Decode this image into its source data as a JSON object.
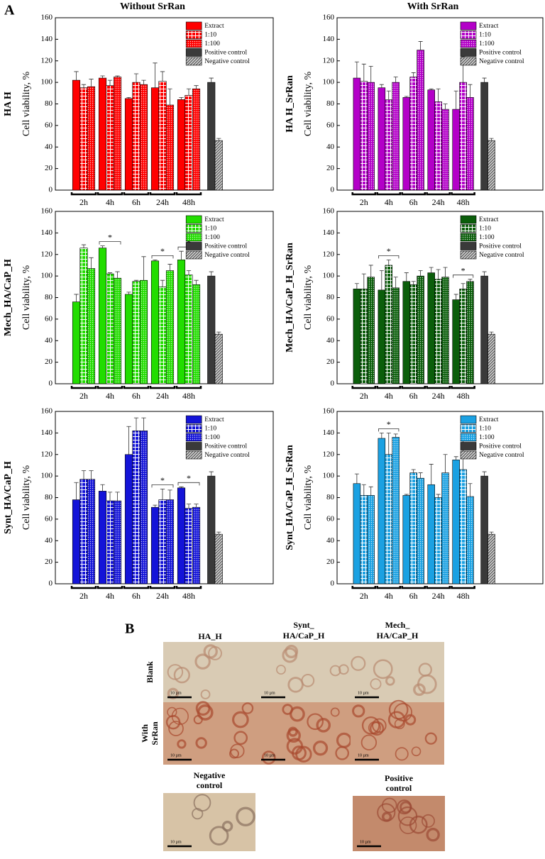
{
  "panel_a": {
    "label": "A",
    "columns": [
      "Without SrRan",
      "With SrRan"
    ]
  },
  "chart_data": [
    {
      "type": "bar",
      "side_label": "HA H",
      "ylabel": "Cell viability, %",
      "categories": [
        "2h",
        "4h",
        "6h",
        "24h",
        "48h",
        null
      ],
      "ylim": [
        0,
        160
      ],
      "yticks": [
        0,
        20,
        40,
        60,
        80,
        100,
        120,
        140,
        160
      ],
      "legend": "upper right",
      "series": [
        {
          "name": "Extract",
          "color": "#ff0000",
          "hatch": "none",
          "values": [
            102,
            104,
            85,
            95,
            84,
            null
          ],
          "errors": [
            8,
            2,
            1,
            23,
            2,
            null
          ]
        },
        {
          "name": "1:10",
          "color": "#ff0000",
          "hatch": "grid",
          "values": [
            95,
            97,
            100,
            101,
            88,
            null
          ],
          "errors": [
            3,
            5,
            8,
            9,
            6,
            null
          ]
        },
        {
          "name": "1:100",
          "color": "#ff0000",
          "hatch": "dots",
          "values": [
            96,
            105,
            98,
            79,
            94,
            null
          ],
          "errors": [
            7,
            1,
            4,
            15,
            3,
            null
          ]
        },
        {
          "name": "Positive control",
          "color": "#3a3a3a",
          "hatch": "none",
          "values": [
            null,
            null,
            null,
            null,
            null,
            100
          ],
          "errors": [
            null,
            null,
            null,
            null,
            null,
            4
          ]
        },
        {
          "name": "Negative control",
          "color": "#555555",
          "hatch": "diagonal",
          "values": [
            null,
            null,
            null,
            null,
            null,
            46
          ],
          "errors": [
            null,
            null,
            null,
            null,
            null,
            2
          ]
        }
      ],
      "significance": []
    },
    {
      "type": "bar",
      "side_label": "HA H_SrRan",
      "ylabel": "Cell viability, %",
      "categories": [
        "2h",
        "4h",
        "6h",
        "24h",
        "48h",
        null
      ],
      "ylim": [
        0,
        160
      ],
      "yticks": [
        0,
        20,
        40,
        60,
        80,
        100,
        120,
        140,
        160
      ],
      "legend": "upper right",
      "series": [
        {
          "name": "Extract",
          "color": "#b300c8",
          "hatch": "none",
          "values": [
            104,
            95,
            86,
            93,
            75,
            null
          ],
          "errors": [
            15,
            3,
            1,
            1,
            17,
            null
          ]
        },
        {
          "name": "1:10",
          "color": "#b300c8",
          "hatch": "grid",
          "values": [
            101,
            84,
            105,
            82,
            100,
            null
          ],
          "errors": [
            16,
            8,
            4,
            12,
            24,
            null
          ]
        },
        {
          "name": "1:100",
          "color": "#b300c8",
          "hatch": "dots",
          "values": [
            100,
            100,
            130,
            75,
            86,
            null
          ],
          "errors": [
            15,
            5,
            8,
            5,
            12,
            null
          ]
        },
        {
          "name": "Positive control",
          "color": "#3a3a3a",
          "hatch": "none",
          "values": [
            null,
            null,
            null,
            null,
            null,
            100
          ],
          "errors": [
            null,
            null,
            null,
            null,
            null,
            4
          ]
        },
        {
          "name": "Negative control",
          "color": "#555555",
          "hatch": "diagonal",
          "values": [
            null,
            null,
            null,
            null,
            null,
            46
          ],
          "errors": [
            null,
            null,
            null,
            null,
            null,
            2
          ]
        }
      ],
      "significance": []
    },
    {
      "type": "bar",
      "side_label": "Mech_HA/CaP_H",
      "ylabel": "Cell viability, %",
      "categories": [
        "2h",
        "4h",
        "6h",
        "24h",
        "48h",
        null
      ],
      "ylim": [
        0,
        160
      ],
      "yticks": [
        0,
        20,
        40,
        60,
        80,
        100,
        120,
        140,
        160
      ],
      "legend": "upper right",
      "series": [
        {
          "name": "Extract",
          "color": "#22dd00",
          "hatch": "none",
          "values": [
            76,
            126,
            83,
            114,
            115,
            null
          ],
          "errors": [
            7,
            2,
            2,
            1,
            8,
            null
          ]
        },
        {
          "name": "1:10",
          "color": "#22dd00",
          "hatch": "grid",
          "values": [
            126,
            102,
            95,
            90,
            101,
            null
          ],
          "errors": [
            3,
            1,
            1,
            6,
            4,
            null
          ]
        },
        {
          "name": "1:100",
          "color": "#22dd00",
          "hatch": "dots",
          "values": [
            107,
            98,
            96,
            105,
            92,
            null
          ],
          "errors": [
            10,
            6,
            22,
            6,
            4,
            null
          ]
        },
        {
          "name": "Positive control",
          "color": "#3a3a3a",
          "hatch": "none",
          "values": [
            null,
            null,
            null,
            null,
            null,
            100
          ],
          "errors": [
            null,
            null,
            null,
            null,
            null,
            4
          ]
        },
        {
          "name": "Negative control",
          "color": "#555555",
          "hatch": "diagonal",
          "values": [
            null,
            null,
            null,
            null,
            null,
            46
          ],
          "errors": [
            null,
            null,
            null,
            null,
            null,
            2
          ]
        }
      ],
      "significance": [
        {
          "label": "*",
          "category": 1
        },
        {
          "label": "*",
          "category": 3
        },
        {
          "label": "*",
          "category": 4
        }
      ]
    },
    {
      "type": "bar",
      "side_label": "Mech_HA/CaP_H_SrRan",
      "ylabel": "Cell viability, %",
      "categories": [
        "2h",
        "4h",
        "6h",
        "24h",
        "48h",
        null
      ],
      "ylim": [
        0,
        160
      ],
      "yticks": [
        0,
        20,
        40,
        60,
        80,
        100,
        120,
        140,
        160
      ],
      "legend": "upper right",
      "series": [
        {
          "name": "Extract",
          "color": "#0b5e0b",
          "hatch": "none",
          "values": [
            88,
            87,
            95,
            103,
            78,
            null
          ],
          "errors": [
            5,
            18,
            8,
            5,
            5,
            null
          ]
        },
        {
          "name": "1:10",
          "color": "#0b5e0b",
          "hatch": "grid",
          "values": [
            88,
            110,
            92,
            97,
            88,
            null
          ],
          "errors": [
            14,
            5,
            3,
            9,
            5,
            null
          ]
        },
        {
          "name": "1:100",
          "color": "#0b5e0b",
          "hatch": "dots",
          "values": [
            99,
            89,
            100,
            99,
            95,
            null
          ],
          "errors": [
            11,
            10,
            5,
            9,
            2,
            null
          ]
        },
        {
          "name": "Positive control",
          "color": "#3a3a3a",
          "hatch": "none",
          "values": [
            null,
            null,
            null,
            null,
            null,
            100
          ],
          "errors": [
            null,
            null,
            null,
            null,
            null,
            4
          ]
        },
        {
          "name": "Negative control",
          "color": "#555555",
          "hatch": "diagonal",
          "values": [
            null,
            null,
            null,
            null,
            null,
            46
          ],
          "errors": [
            null,
            null,
            null,
            null,
            null,
            2
          ]
        }
      ],
      "significance": [
        {
          "label": "*",
          "category": 1
        },
        {
          "label": "*",
          "category": 4
        }
      ]
    },
    {
      "type": "bar",
      "side_label": "Synt_HA/CaP_H",
      "ylabel": "Cell viability, %",
      "categories": [
        "2h",
        "4h",
        "6h",
        "24h",
        "48h",
        null
      ],
      "ylim": [
        0,
        160
      ],
      "yticks": [
        0,
        20,
        40,
        60,
        80,
        100,
        120,
        140,
        160
      ],
      "legend": "upper right",
      "series": [
        {
          "name": "Extract",
          "color": "#1414d8",
          "hatch": "none",
          "values": [
            78,
            86,
            120,
            71,
            89,
            null
          ],
          "errors": [
            16,
            6,
            26,
            2,
            1,
            null
          ]
        },
        {
          "name": "1:10",
          "color": "#1414d8",
          "hatch": "grid",
          "values": [
            97,
            77,
            142,
            78,
            70,
            null
          ],
          "errors": [
            8,
            8,
            12,
            10,
            4,
            null
          ]
        },
        {
          "name": "1:100",
          "color": "#1414d8",
          "hatch": "dots",
          "values": [
            97,
            77,
            142,
            78,
            71,
            null
          ],
          "errors": [
            8,
            8,
            12,
            9,
            3,
            null
          ]
        },
        {
          "name": "Positive control",
          "color": "#3a3a3a",
          "hatch": "none",
          "values": [
            null,
            null,
            null,
            null,
            null,
            100
          ],
          "errors": [
            null,
            null,
            null,
            null,
            null,
            4
          ]
        },
        {
          "name": "Negative control",
          "color": "#555555",
          "hatch": "diagonal",
          "values": [
            null,
            null,
            null,
            null,
            null,
            46
          ],
          "errors": [
            null,
            null,
            null,
            null,
            null,
            2
          ]
        }
      ],
      "significance": [
        {
          "label": "*",
          "category": 3
        },
        {
          "label": "*",
          "category": 4
        }
      ]
    },
    {
      "type": "bar",
      "side_label": "Synt_HA/CaP_H_SrRan",
      "ylabel": "Cell viability, %",
      "categories": [
        "2h",
        "4h",
        "6h",
        "24h",
        "48h",
        null
      ],
      "ylim": [
        0,
        160
      ],
      "yticks": [
        0,
        20,
        40,
        60,
        80,
        100,
        120,
        140,
        160
      ],
      "legend": "upper right",
      "series": [
        {
          "name": "Extract",
          "color": "#1ba1e2",
          "hatch": "none",
          "values": [
            93,
            135,
            82,
            92,
            115,
            null
          ],
          "errors": [
            9,
            5,
            1,
            19,
            3,
            null
          ]
        },
        {
          "name": "1:10",
          "color": "#1ba1e2",
          "hatch": "grid",
          "values": [
            82,
            120,
            103,
            80,
            106,
            null
          ],
          "errors": [
            10,
            20,
            3,
            3,
            30,
            null
          ]
        },
        {
          "name": "1:100",
          "color": "#1ba1e2",
          "hatch": "dots",
          "values": [
            82,
            136,
            98,
            103,
            81,
            null
          ],
          "errors": [
            8,
            3,
            5,
            17,
            12,
            null
          ]
        },
        {
          "name": "Positive control",
          "color": "#3a3a3a",
          "hatch": "none",
          "values": [
            null,
            null,
            null,
            null,
            null,
            100
          ],
          "errors": [
            null,
            null,
            null,
            null,
            null,
            4
          ]
        },
        {
          "name": "Negative control",
          "color": "#555555",
          "hatch": "diagonal",
          "values": [
            null,
            null,
            null,
            null,
            null,
            46
          ],
          "errors": [
            null,
            null,
            null,
            null,
            null,
            2
          ]
        }
      ],
      "significance": [
        {
          "label": "*",
          "category": 1
        }
      ]
    }
  ],
  "panel_b": {
    "label": "B",
    "columns": [
      [
        "HA_H"
      ],
      [
        "Synt_",
        "HA/CaP_H"
      ],
      [
        "Mech_",
        "HA/CaP_H"
      ]
    ],
    "rows": [
      [
        "Blank"
      ],
      [
        "With",
        "SrRan"
      ]
    ],
    "controls": [
      [
        "Negative",
        "control"
      ],
      [
        "Positive",
        "control"
      ]
    ],
    "scale_bar": "10 µm"
  }
}
